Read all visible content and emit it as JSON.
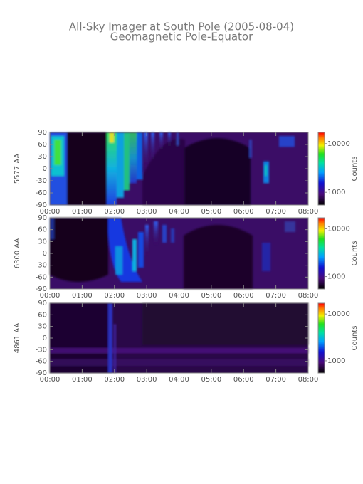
{
  "title": "All-Sky Imager at South Pole (2005-08-04)",
  "subtitle": "Geomagnetic Pole-Equator",
  "chart_data": [
    {
      "type": "heatmap",
      "ylabel": "5577 AA",
      "xlim": [
        0,
        8
      ],
      "xticks": [
        {
          "value": 0,
          "label": "00:00"
        },
        {
          "value": 1,
          "label": "01:00"
        },
        {
          "value": 2,
          "label": "02:00"
        },
        {
          "value": 3,
          "label": "03:00"
        },
        {
          "value": 4,
          "label": "04:00"
        },
        {
          "value": 5,
          "label": "05:00"
        },
        {
          "value": 6,
          "label": "06:00"
        },
        {
          "value": 7,
          "label": "07:00"
        },
        {
          "value": 8,
          "label": "08:00"
        }
      ],
      "ylim": [
        -90,
        90
      ],
      "yticks": [
        -90,
        -60,
        -30,
        0,
        30,
        60,
        90
      ],
      "colorbar": {
        "label": "Counts",
        "log": true,
        "lim": [
          550,
          17000
        ],
        "ticks": [
          1000,
          10000
        ]
      }
    },
    {
      "type": "heatmap",
      "ylabel": "6300 AA",
      "xlim": [
        0,
        8
      ],
      "xticks": [
        {
          "value": 0,
          "label": "00:00"
        },
        {
          "value": 1,
          "label": "01:00"
        },
        {
          "value": 2,
          "label": "02:00"
        },
        {
          "value": 3,
          "label": "03:00"
        },
        {
          "value": 4,
          "label": "04:00"
        },
        {
          "value": 5,
          "label": "05:00"
        },
        {
          "value": 6,
          "label": "06:00"
        },
        {
          "value": 7,
          "label": "07:00"
        },
        {
          "value": 8,
          "label": "08:00"
        }
      ],
      "ylim": [
        -90,
        90
      ],
      "yticks": [
        -90,
        -60,
        -30,
        0,
        30,
        60,
        90
      ],
      "colorbar": {
        "label": "Counts",
        "log": true,
        "lim": [
          550,
          17000
        ],
        "ticks": [
          1000,
          10000
        ]
      }
    },
    {
      "type": "heatmap",
      "ylabel": "4861 AA",
      "xlim": [
        0,
        8
      ],
      "xticks": [
        {
          "value": 0,
          "label": "00:00"
        },
        {
          "value": 1,
          "label": "01:00"
        },
        {
          "value": 2,
          "label": "02:00"
        },
        {
          "value": 3,
          "label": "03:00"
        },
        {
          "value": 4,
          "label": "04:00"
        },
        {
          "value": 5,
          "label": "05:00"
        },
        {
          "value": 6,
          "label": "06:00"
        },
        {
          "value": 7,
          "label": "07:00"
        },
        {
          "value": 8,
          "label": "08:00"
        }
      ],
      "ylim": [
        -90,
        90
      ],
      "yticks": [
        -90,
        -60,
        -30,
        0,
        30,
        60,
        90
      ],
      "colorbar": {
        "label": "Counts",
        "log": true,
        "lim": [
          550,
          17000
        ],
        "ticks": [
          1000,
          10000
        ]
      }
    }
  ]
}
